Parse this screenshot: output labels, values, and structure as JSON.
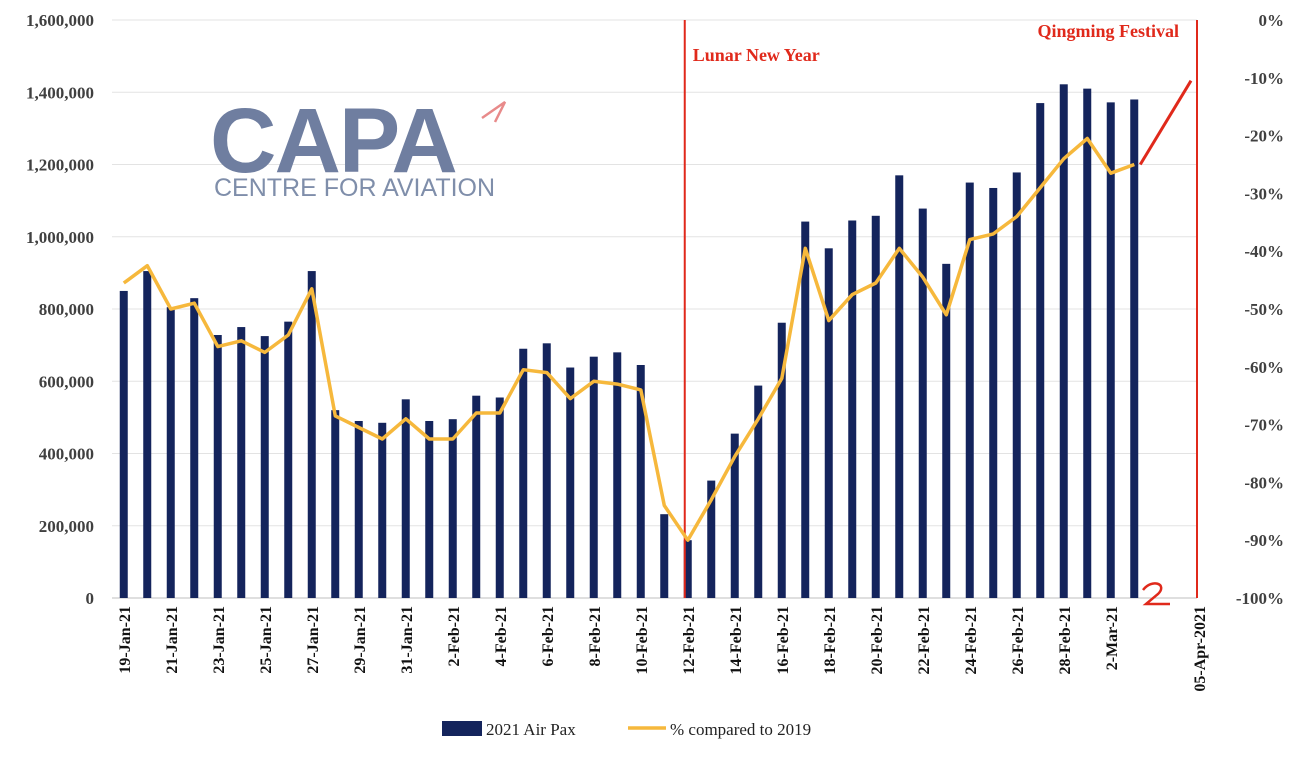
{
  "chart_data": {
    "type": "bar",
    "categories": [
      "19-Jan-21",
      "20-Jan-21",
      "21-Jan-21",
      "22-Jan-21",
      "23-Jan-21",
      "24-Jan-21",
      "25-Jan-21",
      "26-Jan-21",
      "27-Jan-21",
      "28-Jan-21",
      "29-Jan-21",
      "30-Jan-21",
      "31-Jan-21",
      "1-Feb-21",
      "2-Feb-21",
      "3-Feb-21",
      "4-Feb-21",
      "5-Feb-21",
      "6-Feb-21",
      "7-Feb-21",
      "8-Feb-21",
      "9-Feb-21",
      "10-Feb-21",
      "11-Feb-21",
      "12-Feb-21",
      "13-Feb-21",
      "14-Feb-21",
      "15-Feb-21",
      "16-Feb-21",
      "17-Feb-21",
      "18-Feb-21",
      "19-Feb-21",
      "20-Feb-21",
      "21-Feb-21",
      "22-Feb-21",
      "23-Feb-21",
      "24-Feb-21",
      "25-Feb-21",
      "26-Feb-21",
      "27-Feb-21",
      "28-Feb-21",
      "1-Mar-21",
      "2-Mar-21",
      "3-Mar-21"
    ],
    "x_tick_labels": [
      "19-Jan-21",
      "21-Jan-21",
      "23-Jan-21",
      "25-Jan-21",
      "27-Jan-21",
      "29-Jan-21",
      "31-Jan-21",
      "2-Feb-21",
      "4-Feb-21",
      "6-Feb-21",
      "8-Feb-21",
      "10-Feb-21",
      "12-Feb-21",
      "14-Feb-21",
      "16-Feb-21",
      "18-Feb-21",
      "20-Feb-21",
      "22-Feb-21",
      "24-Feb-21",
      "26-Feb-21",
      "28-Feb-21",
      "2-Mar-21"
    ],
    "series": [
      {
        "name": "2021 Air Pax",
        "type": "bar",
        "axis": "left",
        "color": "#14245c",
        "values": [
          850000,
          905000,
          805000,
          830000,
          728000,
          750000,
          725000,
          765000,
          905000,
          520000,
          490000,
          485000,
          550000,
          490000,
          495000,
          560000,
          555000,
          690000,
          705000,
          638000,
          668000,
          680000,
          645000,
          232000,
          160000,
          325000,
          455000,
          588000,
          762000,
          1042000,
          968000,
          1045000,
          1058000,
          1170000,
          1078000,
          925000,
          1150000,
          1135000,
          1178000,
          1370000,
          1422000,
          1410000,
          1372000,
          1380000
        ]
      },
      {
        "name": "% compared to 2019",
        "type": "line",
        "axis": "right",
        "color": "#f6b83c",
        "values": [
          -45.5,
          -42.5,
          -50,
          -49,
          -56.5,
          -55.5,
          -57.5,
          -54.5,
          -46.5,
          -68.5,
          -70.5,
          -72.5,
          -69,
          -72.5,
          -72.5,
          -68,
          -68,
          -60.5,
          -61,
          -65.5,
          -62.5,
          -63,
          -64,
          -84,
          -90,
          -83,
          -75.5,
          -69,
          -62,
          -39.5,
          -52,
          -47.5,
          -45.5,
          -39.5,
          -44.5,
          -51,
          -38,
          -37,
          -34,
          -29,
          -24,
          -20.5,
          -26.5,
          -25
        ]
      }
    ],
    "projection": {
      "from_index": 43,
      "from_value": -25,
      "to_value": -10.5,
      "color": "#e0291b"
    },
    "y_left": {
      "min": 0,
      "max": 1600000,
      "ticks": [
        "0",
        "200,000",
        "400,000",
        "600,000",
        "800,000",
        "1,000,000",
        "1,200,000",
        "1,400,000",
        "1,600,000"
      ]
    },
    "y_right": {
      "min": -100,
      "max": 0,
      "ticks": [
        "-100%",
        "-90%",
        "-80%",
        "-70%",
        "-60%",
        "-50%",
        "-40%",
        "-30%",
        "-20%",
        "-10%",
        "0%"
      ]
    },
    "annotations": [
      {
        "label": "Lunar New Year",
        "at_index": 24,
        "color": "#e0291b"
      },
      {
        "label": "Qingming Festival",
        "color": "#e0291b"
      }
    ],
    "extra_axis_label": "05-Apr-2021",
    "legend": {
      "position": "bottom",
      "items": [
        "2021 Air Pax",
        "% compared to 2019"
      ]
    },
    "grid": true
  },
  "logo": {
    "main": "CAPA",
    "sub": "CENTRE FOR AVIATION"
  }
}
